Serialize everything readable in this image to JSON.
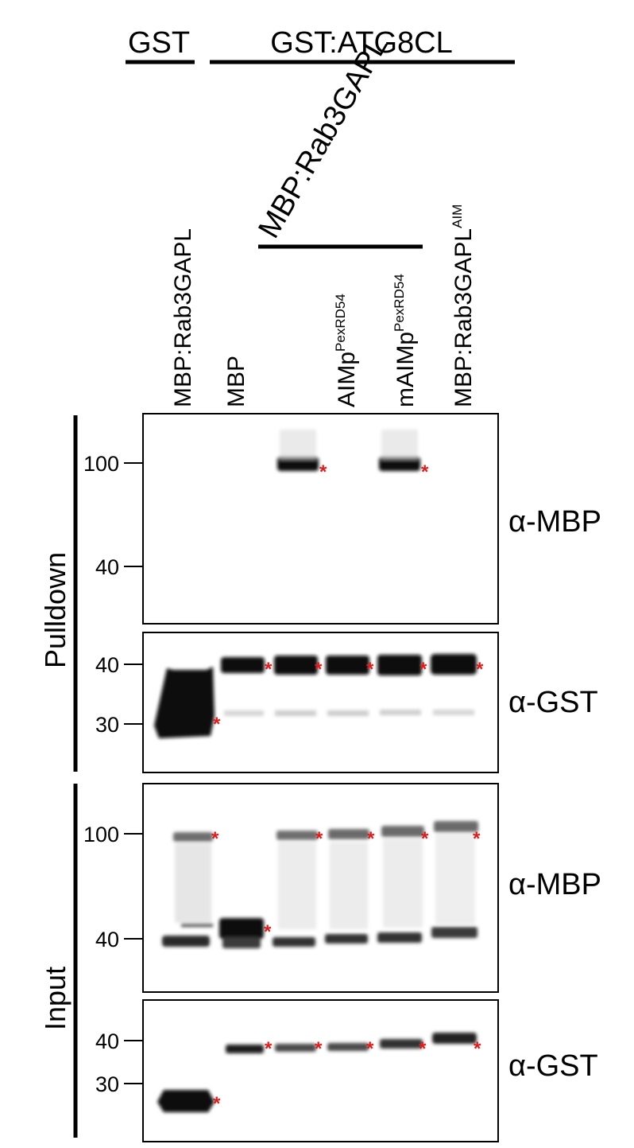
{
  "header": {
    "control_label": "GST",
    "bait_label": "GST:ATG8CL",
    "group_label": "MBP:Rab3GAPL"
  },
  "lanes": [
    {
      "name": "lane-1",
      "base": "MBP:Rab3GAPL",
      "sup": ""
    },
    {
      "name": "lane-2",
      "base": "MBP",
      "sup": ""
    },
    {
      "name": "lane-3",
      "base": "",
      "sup": ""
    },
    {
      "name": "lane-4",
      "base": "AIMp",
      "sup": "PexRD54"
    },
    {
      "name": "lane-5",
      "base": "mAIMp",
      "sup": "PexRD54"
    },
    {
      "name": "lane-6",
      "base": "MBP:Rab3GAPL",
      "sup": "AIM"
    }
  ],
  "sections": {
    "pulldown": "Pulldown",
    "input": "Input"
  },
  "panels": [
    {
      "name": "pulldown-mbp",
      "section": "pulldown",
      "antibody": "α-MBP",
      "markers": [
        "100",
        "40"
      ],
      "bands": [
        {
          "lane": 3,
          "marker": "100",
          "intensity": 1.0,
          "starred": true
        },
        {
          "lane": 5,
          "marker": "100",
          "intensity": 1.0,
          "starred": true
        }
      ]
    },
    {
      "name": "pulldown-gst",
      "section": "pulldown",
      "antibody": "α-GST",
      "markers": [
        "40",
        "30"
      ],
      "bands": [
        {
          "lane": 1,
          "marker": "30",
          "intensity": 1.0,
          "starred": true
        },
        {
          "lane": 2,
          "marker": "40",
          "intensity": 1.0,
          "starred": true
        },
        {
          "lane": 3,
          "marker": "40",
          "intensity": 1.0,
          "starred": true
        },
        {
          "lane": 4,
          "marker": "40",
          "intensity": 1.0,
          "starred": true
        },
        {
          "lane": 5,
          "marker": "40",
          "intensity": 1.0,
          "starred": true
        },
        {
          "lane": 6,
          "marker": "40",
          "intensity": 1.0,
          "starred": true
        }
      ]
    },
    {
      "name": "input-mbp",
      "section": "input",
      "antibody": "α-MBP",
      "markers": [
        "100",
        "40"
      ],
      "bands": [
        {
          "lane": 1,
          "marker": "100",
          "intensity": 0.6,
          "starred": true
        },
        {
          "lane": 2,
          "marker": "40",
          "intensity": 1.0,
          "starred": true
        },
        {
          "lane": 3,
          "marker": "100",
          "intensity": 0.6,
          "starred": true
        },
        {
          "lane": 4,
          "marker": "100",
          "intensity": 0.6,
          "starred": true
        },
        {
          "lane": 5,
          "marker": "100",
          "intensity": 0.6,
          "starred": true
        },
        {
          "lane": 6,
          "marker": "100",
          "intensity": 0.6,
          "starred": true
        }
      ]
    },
    {
      "name": "input-gst",
      "section": "input",
      "antibody": "α-GST",
      "markers": [
        "40",
        "30"
      ],
      "bands": [
        {
          "lane": 1,
          "marker": "30",
          "intensity": 1.0,
          "starred": true
        },
        {
          "lane": 2,
          "marker": "40",
          "intensity": 0.85,
          "starred": true
        },
        {
          "lane": 3,
          "marker": "40",
          "intensity": 0.7,
          "starred": true
        },
        {
          "lane": 4,
          "marker": "40",
          "intensity": 0.7,
          "starred": true
        },
        {
          "lane": 5,
          "marker": "40",
          "intensity": 0.8,
          "starred": true
        },
        {
          "lane": 6,
          "marker": "40",
          "intensity": 0.85,
          "starred": true
        }
      ]
    }
  ],
  "star_symbol": "*",
  "colors": {
    "band": "#0a0a0a",
    "faint": "#8a8a8a",
    "star": "#e21a1a",
    "frame": "#000000"
  }
}
